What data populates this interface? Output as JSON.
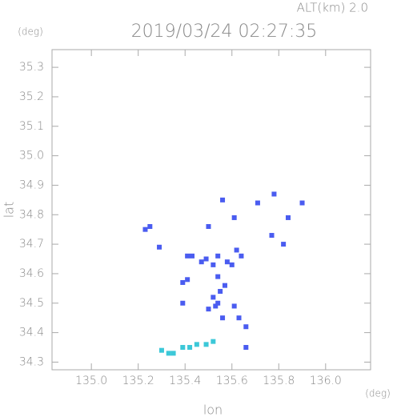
{
  "chart_data": {
    "type": "scatter",
    "title": "2019/03/24 02:27:35",
    "subtitle": "ALT(km) 2.0",
    "x_label": "lon",
    "y_label": "lat",
    "x_unit": "(deg)",
    "y_unit": "(deg)",
    "xlim": [
      134.832,
      136.192
    ],
    "ylim": [
      34.274,
      35.36
    ],
    "xticks": [
      {
        "value": 135,
        "label": "135.0"
      },
      135.2,
      135.4,
      135.6,
      135.8,
      {
        "value": 136,
        "label": "136.0"
      }
    ],
    "yticks": [
      34.3,
      34.4,
      34.5,
      34.6,
      34.7,
      34.8,
      34.9,
      {
        "value": 35,
        "label": "35.0"
      },
      35.1,
      35.2,
      35.3
    ],
    "series": [
      {
        "color": "#4a5cf0",
        "x": [
          135.25,
          135.23,
          135.56,
          135.61,
          135.71,
          135.78,
          135.9,
          135.84,
          135.77,
          135.82,
          135.5,
          135.29,
          135.41,
          135.43,
          135.49,
          135.47,
          135.62,
          135.64,
          135.54,
          135.58,
          135.6,
          135.52,
          135.54,
          135.57,
          135.55,
          135.54,
          135.53,
          135.56,
          135.61,
          135.63,
          135.39,
          135.41,
          135.39,
          135.66,
          135.66,
          135.5,
          135.52
        ],
        "values": [
          34.76,
          34.75,
          34.85,
          34.79,
          34.84,
          34.87,
          34.84,
          34.79,
          34.73,
          34.7,
          34.76,
          34.69,
          34.66,
          34.66,
          34.65,
          34.64,
          34.68,
          34.66,
          34.66,
          34.64,
          34.63,
          34.63,
          34.59,
          34.56,
          34.54,
          34.5,
          34.49,
          34.45,
          34.49,
          34.45,
          34.57,
          34.58,
          34.5,
          34.42,
          34.35,
          34.48,
          34.52
        ]
      },
      {
        "color": "#3cc8d8",
        "x": [
          135.3,
          135.33,
          135.35,
          135.39,
          135.42,
          135.45,
          135.49,
          135.52
        ],
        "values": [
          34.34,
          34.33,
          34.33,
          34.35,
          34.35,
          34.36,
          34.36,
          34.37
        ]
      }
    ]
  }
}
